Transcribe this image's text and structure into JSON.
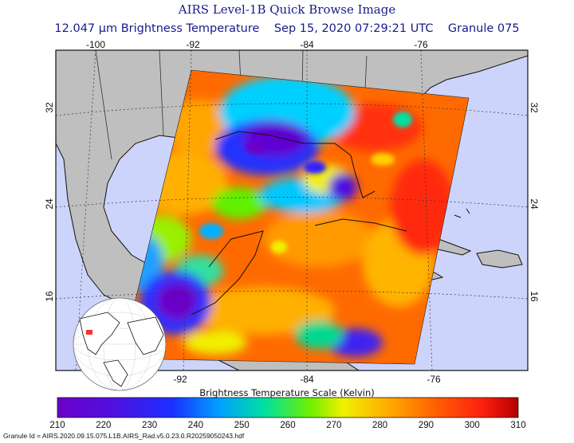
{
  "header": {
    "title": "AIRS Level-1B Quick Browse Image",
    "subtitle": "12.047 μm Brightness Temperature    Sep 15, 2020 07:29:21 UTC    Granule 075"
  },
  "map": {
    "lon_ticks": [
      "-100",
      "-92",
      "-84",
      "-76"
    ],
    "lat_ticks": [
      "32",
      "24",
      "16"
    ],
    "colors": {
      "ocean": "#cdd4fb",
      "land": "#bfbfbf",
      "border": "#111111"
    }
  },
  "colorbar": {
    "title": "Brightness Temperature Scale (Kelvin)",
    "min": 210,
    "max": 310,
    "ticks": [
      "210",
      "220",
      "230",
      "240",
      "250",
      "260",
      "270",
      "280",
      "290",
      "300",
      "310"
    ]
  },
  "footer": {
    "granule_id": "Granule Id = AIRS.2020.09.15.075.L1B.AIRS_Rad.v5.0.23.0.R20259050243.hdf"
  }
}
